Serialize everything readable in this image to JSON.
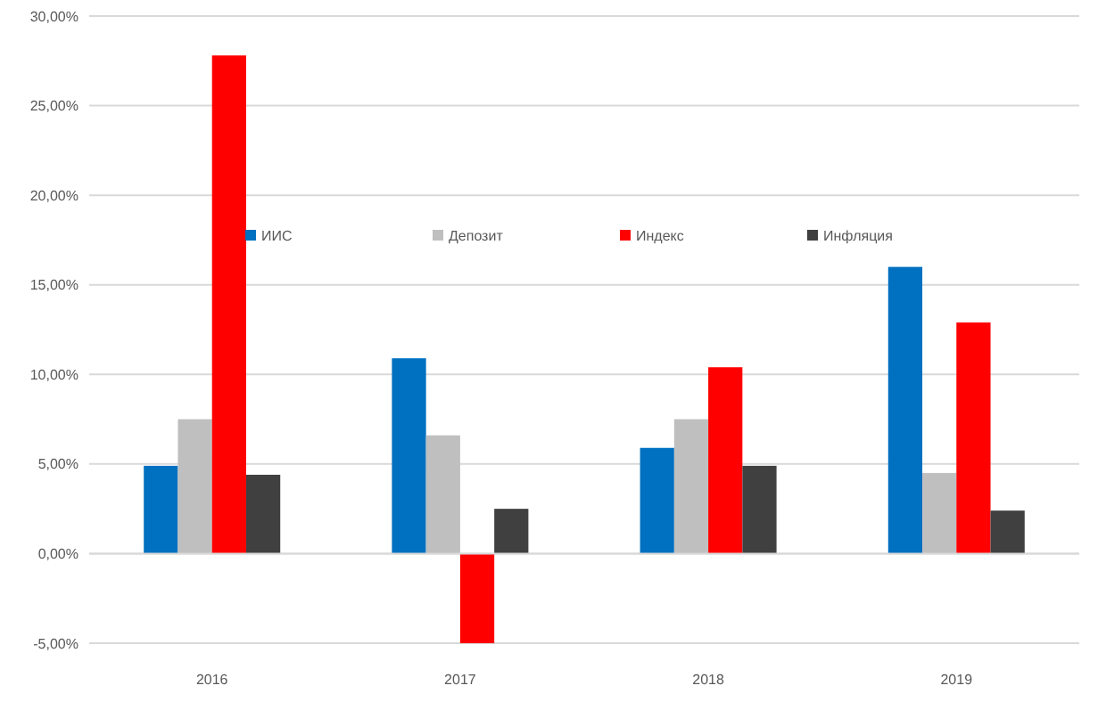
{
  "chart_data": {
    "type": "bar",
    "categories": [
      "2016",
      "2017",
      "2018",
      "2019"
    ],
    "series": [
      {
        "name": "ИИС",
        "color": "#0070c0",
        "values": [
          4.9,
          10.9,
          5.9,
          16.0
        ]
      },
      {
        "name": "Депозит",
        "color": "#bfbfbf",
        "values": [
          7.5,
          6.6,
          7.5,
          4.5
        ]
      },
      {
        "name": "Индекс",
        "color": "#ff0000",
        "values": [
          27.8,
          -5,
          10.4,
          12.9
        ]
      },
      {
        "name": "Инфляция",
        "color": "#404040",
        "values": [
          4.4,
          2.5,
          4.9,
          2.4
        ]
      }
    ],
    "ylim": [
      -5,
      30
    ],
    "yticks": [
      {
        "value": -5,
        "label": "-5,00%"
      },
      {
        "value": 0,
        "label": "0,00%"
      },
      {
        "value": 5,
        "label": "5,00%"
      },
      {
        "value": 10,
        "label": "10,00%"
      },
      {
        "value": 15,
        "label": "15,00%"
      },
      {
        "value": 20,
        "label": "20,00%"
      },
      {
        "value": 25,
        "label": "25,00%"
      },
      {
        "value": 30,
        "label": "30,00%"
      }
    ],
    "grid": "y",
    "legend": "top"
  }
}
